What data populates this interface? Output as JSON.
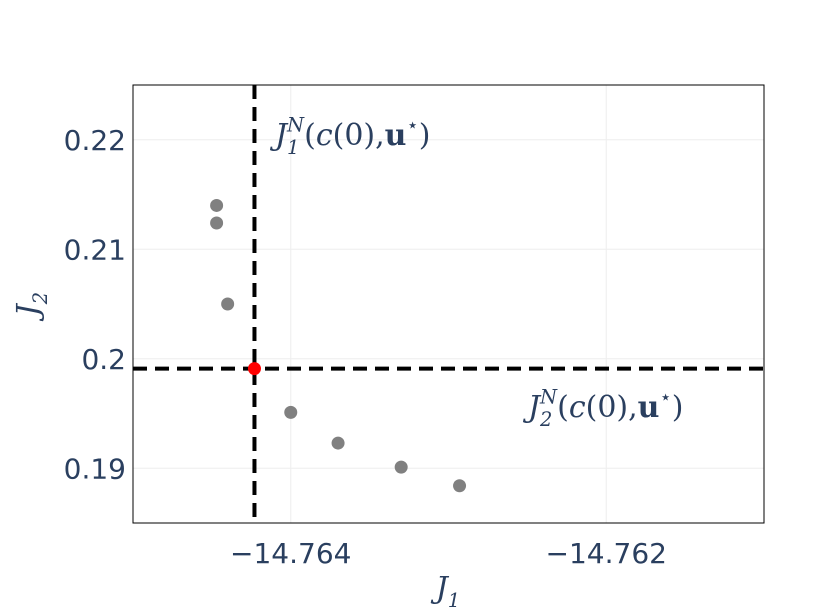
{
  "chart_data": {
    "type": "scatter",
    "x_label": [
      {
        "t": "J",
        "style": "italic"
      },
      {
        "t": "1",
        "style": "sub"
      }
    ],
    "y_label": [
      {
        "t": "J",
        "style": "italic"
      },
      {
        "t": "2",
        "style": "sub"
      }
    ],
    "series": [
      {
        "color": "#808080",
        "x": [
          -14.76447,
          -14.76447,
          -14.7644,
          -14.764,
          -14.7637,
          -14.7633,
          -14.76293
        ],
        "values": [
          0.214,
          0.2124,
          0.205,
          0.1951,
          0.1923,
          0.1901,
          0.1884
        ]
      },
      {
        "color": "#ff0000",
        "x": [
          -14.76423
        ],
        "values": [
          0.1991
        ]
      }
    ],
    "vline_x": -14.76423,
    "hline_y": 0.1991,
    "line_color": "#000000",
    "annotations": [
      {
        "segments": [
          {
            "t": "J",
            "style": "italic"
          },
          {
            "t": "1",
            "style": "sub"
          },
          {
            "t": "N",
            "style": "supstack"
          },
          {
            "t": "(",
            "style": "normal"
          },
          {
            "t": "c",
            "style": "italic"
          },
          {
            "t": "(0), ",
            "style": "normal"
          },
          {
            "t": "u",
            "style": "bold"
          },
          {
            "t": "⋆",
            "style": "sup"
          },
          {
            "t": ")",
            "style": "normal"
          }
        ]
      },
      {
        "segments": [
          {
            "t": "J",
            "style": "italic"
          },
          {
            "t": "2",
            "style": "sub"
          },
          {
            "t": "N",
            "style": "supstack"
          },
          {
            "t": "(",
            "style": "normal"
          },
          {
            "t": "c",
            "style": "italic"
          },
          {
            "t": "(0), ",
            "style": "normal"
          },
          {
            "t": "u",
            "style": "bold"
          },
          {
            "t": "⋆",
            "style": "sup"
          },
          {
            "t": ")",
            "style": "normal"
          }
        ]
      }
    ],
    "xlim": [
      -14.765,
      -14.761
    ],
    "ylim": [
      0.185,
      0.225
    ],
    "xticks": [
      {
        "value": -14.764,
        "label": "−14.764"
      },
      {
        "value": -14.762,
        "label": "−14.762"
      }
    ],
    "yticks": [
      0.19,
      0.2,
      0.21,
      0.22
    ],
    "grid": true
  }
}
